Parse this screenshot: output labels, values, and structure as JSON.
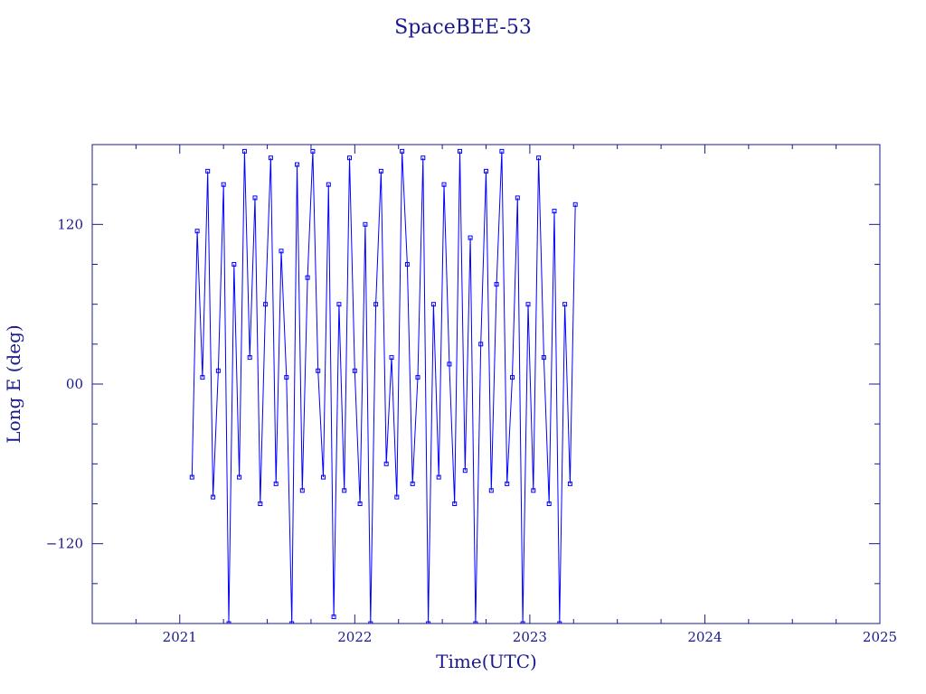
{
  "chart_data": {
    "type": "line",
    "title": "SpaceBEE-53",
    "xlabel": "Time(UTC)",
    "ylabel": "Long E (deg)",
    "xlim": [
      2020.5,
      2025.0
    ],
    "ylim": [
      -180,
      180
    ],
    "x_ticks": [
      2021,
      2022,
      2023,
      2024,
      2025
    ],
    "x_tick_labels": [
      "2021",
      "2022",
      "2023",
      "2024",
      "2025"
    ],
    "y_ticks": [
      -120,
      0,
      120
    ],
    "y_tick_labels": [
      "−120",
      "00",
      "120"
    ],
    "grid": false,
    "legend": "none",
    "marker": "square",
    "colors": {
      "series": "#0000ff",
      "axes": "#1a1a8c",
      "text": "#1a1a8c"
    },
    "series": [
      {
        "x": [
          2021.07,
          2021.1,
          2021.13,
          2021.16,
          2021.19,
          2021.22,
          2021.25,
          2021.28,
          2021.31,
          2021.34,
          2021.37,
          2021.4,
          2021.43,
          2021.46,
          2021.49,
          2021.52,
          2021.55,
          2021.58,
          2021.61,
          2021.64,
          2021.67,
          2021.7,
          2021.73,
          2021.76,
          2021.79,
          2021.82,
          2021.85,
          2021.88,
          2021.91,
          2021.94,
          2021.97,
          2022.0,
          2022.03,
          2022.06,
          2022.09,
          2022.12,
          2022.15,
          2022.18,
          2022.21,
          2022.24,
          2022.27,
          2022.3,
          2022.33,
          2022.36,
          2022.39,
          2022.42,
          2022.45,
          2022.48,
          2022.51,
          2022.54,
          2022.57,
          2022.6,
          2022.63,
          2022.66,
          2022.69,
          2022.72,
          2022.75,
          2022.78,
          2022.81,
          2022.84,
          2022.87,
          2022.9,
          2022.93,
          2022.96,
          2022.99,
          2023.02,
          2023.05,
          2023.08,
          2023.11,
          2023.14,
          2023.17,
          2023.2,
          2023.23,
          2023.26
        ],
        "y": [
          -70,
          115,
          5,
          160,
          -85,
          10,
          150,
          -180,
          90,
          -70,
          175,
          20,
          140,
          -90,
          60,
          170,
          -75,
          100,
          5,
          -180,
          165,
          -80,
          80,
          175,
          10,
          -70,
          150,
          -175,
          60,
          -80,
          170,
          10,
          -90,
          120,
          -180,
          60,
          160,
          -60,
          20,
          -85,
          175,
          90,
          -75,
          5,
          170,
          -180,
          60,
          -70,
          150,
          15,
          -90,
          175,
          -65,
          110,
          -180,
          30,
          160,
          -80,
          75,
          175,
          -75,
          5,
          140,
          -180,
          60,
          -80,
          170,
          20,
          -90,
          130,
          -180,
          60,
          -75,
          135
        ]
      }
    ]
  }
}
